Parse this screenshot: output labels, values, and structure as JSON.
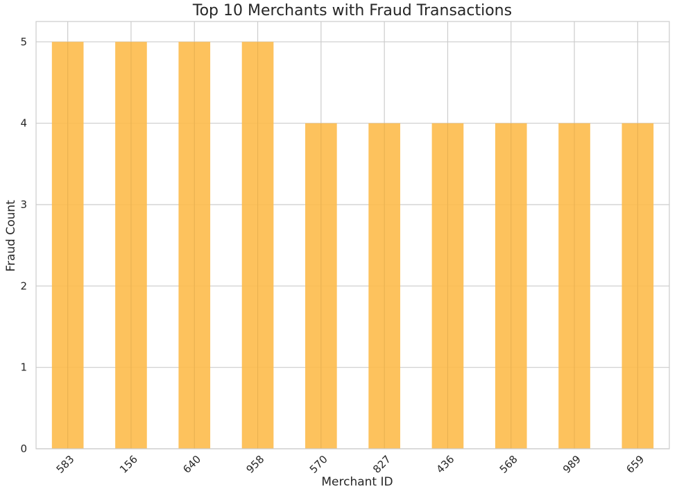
{
  "chart_data": {
    "type": "bar",
    "title": "Top 10 Merchants with Fraud Transactions",
    "xlabel": "Merchant ID",
    "ylabel": "Fraud Count",
    "categories": [
      "583",
      "156",
      "640",
      "958",
      "570",
      "827",
      "436",
      "568",
      "989",
      "659"
    ],
    "values": [
      5,
      5,
      5,
      5,
      4,
      4,
      4,
      4,
      4,
      4
    ],
    "ylim": [
      0,
      5.25
    ],
    "yticks": [
      "0",
      "1",
      "2",
      "3",
      "4",
      "5"
    ],
    "grid": true,
    "legend": "none",
    "bar_color": "#fdbb4b",
    "grid_color": "#cccccc"
  }
}
